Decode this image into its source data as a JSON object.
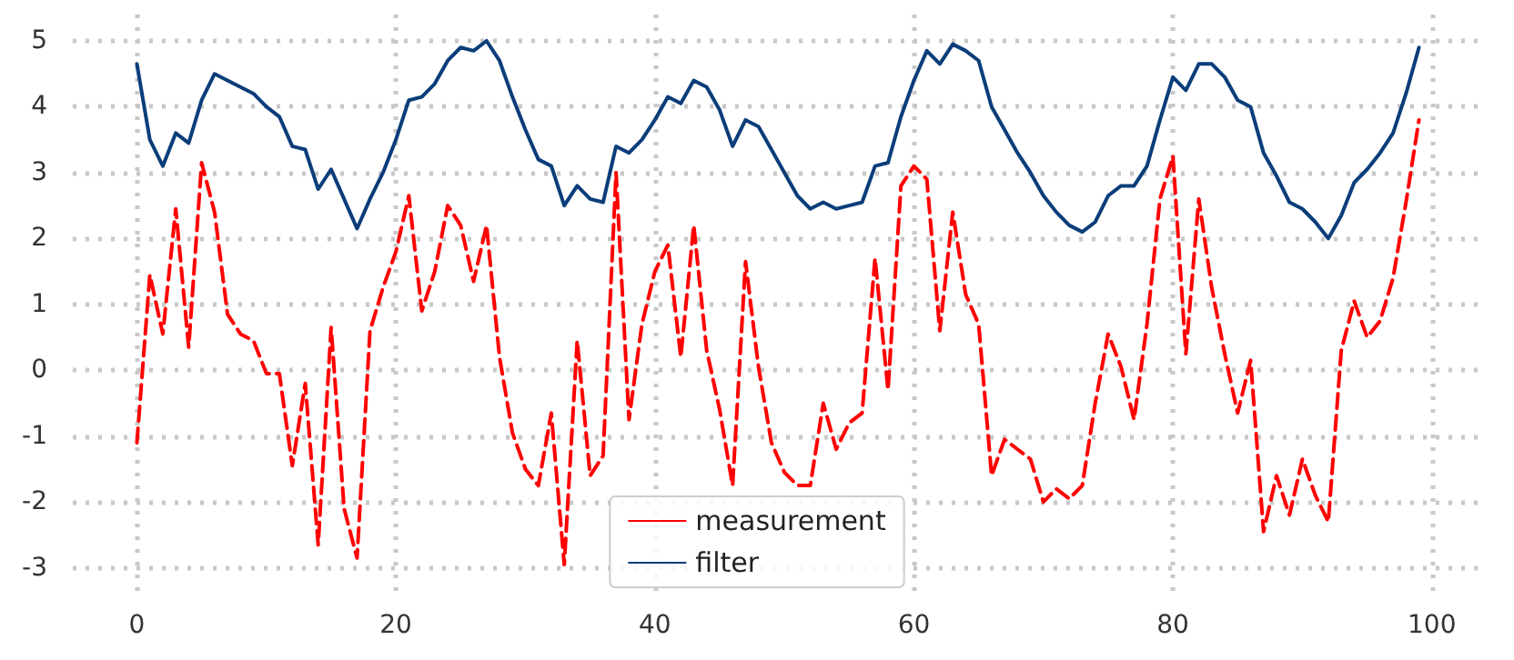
{
  "chart_data": {
    "type": "line",
    "x": [
      0,
      1,
      2,
      3,
      4,
      5,
      6,
      7,
      8,
      9,
      10,
      11,
      12,
      13,
      14,
      15,
      16,
      17,
      18,
      19,
      20,
      21,
      22,
      23,
      24,
      25,
      26,
      27,
      28,
      29,
      30,
      31,
      32,
      33,
      34,
      35,
      36,
      37,
      38,
      39,
      40,
      41,
      42,
      43,
      44,
      45,
      46,
      47,
      48,
      49,
      50,
      51,
      52,
      53,
      54,
      55,
      56,
      57,
      58,
      59,
      60,
      61,
      62,
      63,
      64,
      65,
      66,
      67,
      68,
      69,
      70,
      71,
      72,
      73,
      74,
      75,
      76,
      77,
      78,
      79,
      80,
      81,
      82,
      83,
      84,
      85,
      86,
      87,
      88,
      89,
      90,
      91,
      92,
      93,
      94,
      95,
      96,
      97,
      98,
      99
    ],
    "series": [
      {
        "name": "measurement",
        "color": "#ff0000",
        "line_style": "dashed",
        "values": [
          -1.1,
          1.45,
          0.55,
          2.45,
          0.35,
          3.15,
          2.4,
          0.85,
          0.55,
          0.45,
          -0.05,
          -0.05,
          -1.45,
          -0.2,
          -2.65,
          0.65,
          -2.1,
          -2.85,
          0.6,
          1.25,
          1.8,
          2.65,
          0.9,
          1.5,
          2.5,
          2.2,
          1.35,
          2.2,
          0.2,
          -0.95,
          -1.5,
          -1.75,
          -0.65,
          -2.95,
          0.45,
          -1.6,
          -1.3,
          3.0,
          -0.75,
          0.7,
          1.5,
          1.9,
          0.2,
          2.2,
          0.3,
          -0.6,
          -1.75,
          1.65,
          0.05,
          -1.1,
          -1.55,
          -1.75,
          -1.75,
          -0.5,
          -1.2,
          -0.8,
          -0.65,
          1.7,
          -0.3,
          2.8,
          3.1,
          2.9,
          0.6,
          2.4,
          1.15,
          0.7,
          -1.6,
          -1.05,
          -1.2,
          -1.35,
          -2.0,
          -1.8,
          -1.95,
          -1.75,
          -0.5,
          0.55,
          0.05,
          -0.75,
          0.7,
          2.6,
          3.25,
          0.25,
          2.6,
          1.25,
          0.25,
          -0.65,
          0.15,
          -2.45,
          -1.6,
          -2.2,
          -1.35,
          -1.9,
          -2.3,
          0.3,
          1.05,
          0.5,
          0.75,
          1.4,
          2.55,
          3.8
        ]
      },
      {
        "name": "filter",
        "color": "#0b3d7a",
        "line_style": "solid",
        "values": [
          4.65,
          3.5,
          3.1,
          3.6,
          3.45,
          4.1,
          4.5,
          4.4,
          4.3,
          4.2,
          4.0,
          3.85,
          3.4,
          3.35,
          2.75,
          3.05,
          2.6,
          2.15,
          2.6,
          3.0,
          3.5,
          4.1,
          4.15,
          4.35,
          4.7,
          4.9,
          4.85,
          5.0,
          4.7,
          4.15,
          3.65,
          3.2,
          3.1,
          2.5,
          2.8,
          2.6,
          2.55,
          3.4,
          3.3,
          3.5,
          3.8,
          4.15,
          4.05,
          4.4,
          4.3,
          3.95,
          3.4,
          3.8,
          3.7,
          3.35,
          3.0,
          2.65,
          2.45,
          2.55,
          2.45,
          2.5,
          2.55,
          3.1,
          3.15,
          3.85,
          4.4,
          4.85,
          4.65,
          4.95,
          4.85,
          4.7,
          4.0,
          3.65,
          3.3,
          3.0,
          2.65,
          2.4,
          2.2,
          2.1,
          2.25,
          2.65,
          2.8,
          2.8,
          3.1,
          3.8,
          4.45,
          4.25,
          4.65,
          4.65,
          4.45,
          4.1,
          4.0,
          3.3,
          2.95,
          2.55,
          2.45,
          2.25,
          2.0,
          2.35,
          2.85,
          3.05,
          3.3,
          3.6,
          4.2,
          4.9
        ]
      }
    ],
    "xlim": [
      -4.95,
      103.95
    ],
    "xticks": [
      0,
      20,
      40,
      60,
      80,
      100
    ],
    "ylim": [
      -3.35,
      5.4
    ],
    "yticks": [
      -3,
      -2,
      -1,
      0,
      1,
      2,
      3,
      4,
      5
    ],
    "grid": true,
    "legend": "bottom",
    "marker": "none"
  }
}
